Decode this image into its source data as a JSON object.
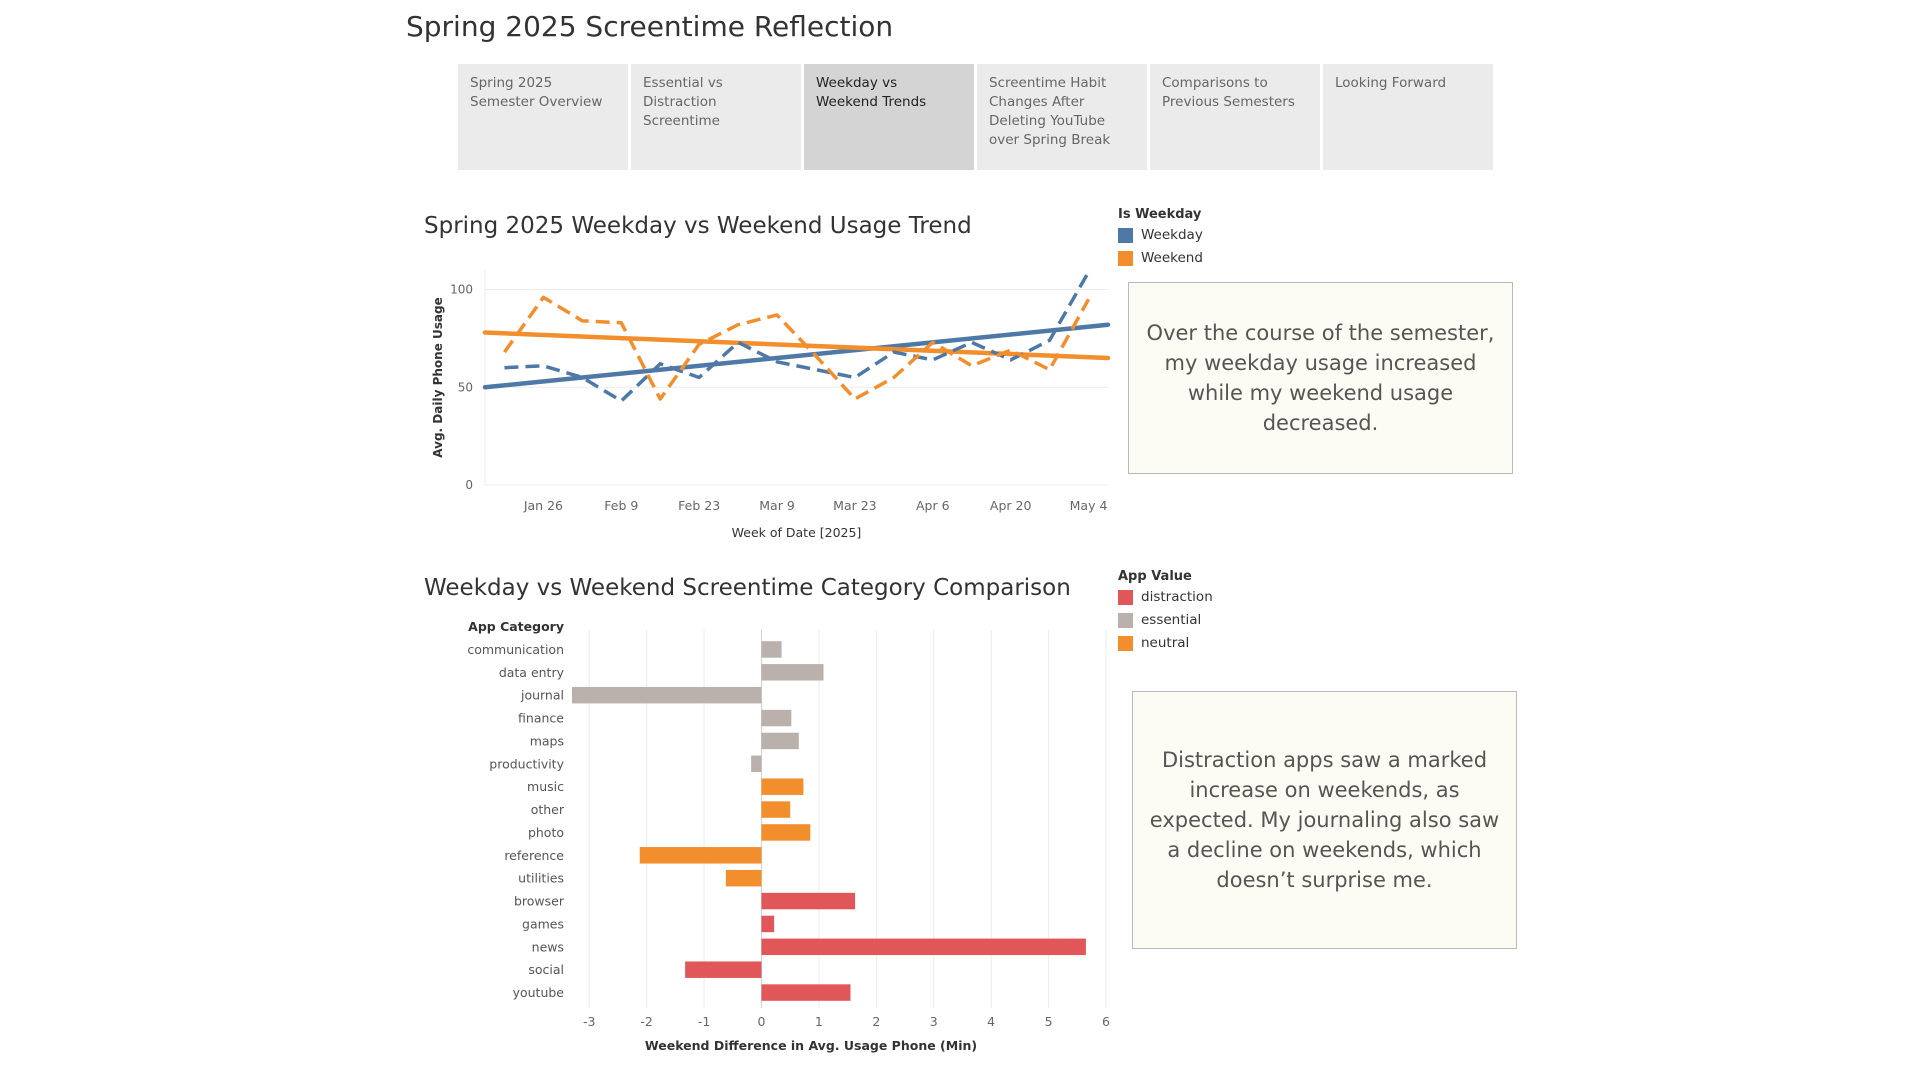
{
  "page_title": "Spring 2025 Screentime Reflection",
  "tabs": [
    {
      "label": "Spring 2025 Semester Overview",
      "active": false
    },
    {
      "label": "Essential vs Distraction Screentime",
      "active": false
    },
    {
      "label": "Weekday vs Weekend Trends",
      "active": true
    },
    {
      "label": "Screentime Habit Changes After Deleting YouTube over Spring Break",
      "active": false
    },
    {
      "label": "Comparisons to Previous Semesters",
      "active": false
    },
    {
      "label": "Looking Forward",
      "active": false
    }
  ],
  "colors": {
    "weekday": "#4e79a7",
    "weekend": "#f28e2b",
    "distraction": "#e15759",
    "essential": "#bab0ac",
    "neutral": "#f28e2b"
  },
  "line_legend": {
    "title": "Is Weekday",
    "items": [
      {
        "label": "Weekday",
        "color": "#4e79a7"
      },
      {
        "label": "Weekend",
        "color": "#f28e2b"
      }
    ]
  },
  "bar_legend": {
    "title": "App Value",
    "items": [
      {
        "label": "distraction",
        "color": "#e15759"
      },
      {
        "label": "essential",
        "color": "#bab0ac"
      },
      {
        "label": "neutral",
        "color": "#f28e2b"
      }
    ]
  },
  "annotations": {
    "line": "Over the course of the semester, my weekday usage increased while my weekend usage decreased.",
    "bar": "Distraction apps saw a marked increase on weekends, as expected. My journaling also saw a decline on weekends, which doesn’t surprise me."
  },
  "chart_data": [
    {
      "type": "line",
      "title": "Spring 2025 Weekday vs Weekend Usage Trend",
      "xlabel": "Week of Date [2025]",
      "ylabel": "Avg. Daily Phone Usage",
      "x_tick_labels": [
        "Jan 26",
        "Feb 9",
        "Feb 23",
        "Mar 9",
        "Mar 23",
        "Apr 6",
        "Apr 20",
        "May 4"
      ],
      "y_ticks": [
        0,
        50,
        100
      ],
      "ylim": [
        0,
        110
      ],
      "x": [
        "Jan 19",
        "Jan 26",
        "Feb 2",
        "Feb 9",
        "Feb 16",
        "Feb 23",
        "Mar 2",
        "Mar 9",
        "Mar 16",
        "Mar 23",
        "Mar 30",
        "Apr 6",
        "Apr 13",
        "Apr 20",
        "Apr 27",
        "May 4"
      ],
      "series": [
        {
          "name": "Weekday",
          "values": [
            60,
            61,
            55,
            43,
            62,
            55,
            73,
            63,
            59,
            55,
            68,
            64,
            73,
            64,
            74,
            109
          ]
        },
        {
          "name": "Weekend",
          "values": [
            68,
            96,
            84,
            83,
            44,
            72,
            82,
            87,
            66,
            44,
            55,
            73,
            61,
            69,
            59,
            95
          ]
        }
      ],
      "trend_lines": [
        {
          "name": "Weekday",
          "start": 50,
          "end": 82
        },
        {
          "name": "Weekend",
          "start": 78,
          "end": 65
        }
      ],
      "legend": "top-right",
      "grid": true
    },
    {
      "type": "bar",
      "orientation": "horizontal",
      "title": "Weekday vs Weekend Screentime Category Comparison",
      "xlabel": "Weekend Difference in Avg. Usage Phone (Min)",
      "ylabel": "App Category",
      "xlim": [
        -3.3,
        6
      ],
      "x_ticks": [
        -3,
        -2,
        -1,
        0,
        1,
        2,
        3,
        4,
        5,
        6
      ],
      "categories": [
        "communication",
        "data entry",
        "journal",
        "finance",
        "maps",
        "productivity",
        "music",
        "other",
        "photo",
        "reference",
        "utilities",
        "browser",
        "games",
        "news",
        "social",
        "youtube"
      ],
      "values": [
        0.35,
        1.08,
        -3.3,
        0.52,
        0.65,
        -0.18,
        0.73,
        0.5,
        0.85,
        -2.12,
        -0.62,
        1.63,
        0.22,
        5.65,
        -1.33,
        1.55
      ],
      "groups": [
        "essential",
        "essential",
        "essential",
        "essential",
        "essential",
        "essential",
        "neutral",
        "neutral",
        "neutral",
        "neutral",
        "neutral",
        "distraction",
        "distraction",
        "distraction",
        "distraction",
        "distraction"
      ],
      "legend": "top-right",
      "grid": true
    }
  ]
}
